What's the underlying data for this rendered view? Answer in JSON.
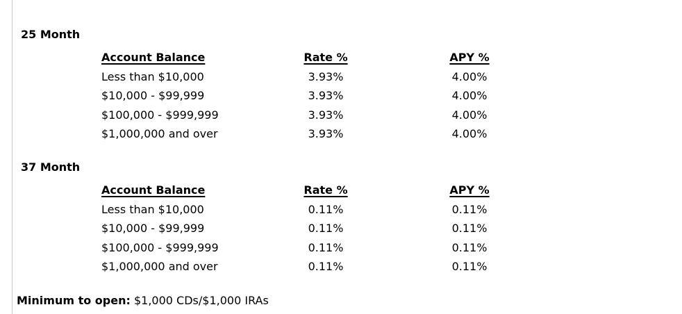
{
  "sections": [
    {
      "title": "25 Month",
      "headers": {
        "balance": "Account Balance",
        "rate": "Rate %",
        "apy": "APY %"
      },
      "rows": [
        {
          "balance": "Less than $10,000",
          "rate": "3.93%",
          "apy": "4.00%"
        },
        {
          "balance": "$10,000 - $99,999",
          "rate": "3.93%",
          "apy": "4.00%"
        },
        {
          "balance": "$100,000 - $999,999",
          "rate": "3.93%",
          "apy": "4.00%"
        },
        {
          "balance": "$1,000,000 and over",
          "rate": "3.93%",
          "apy": "4.00%"
        }
      ]
    },
    {
      "title": "37 Month",
      "headers": {
        "balance": "Account Balance",
        "rate": "Rate %",
        "apy": "APY %"
      },
      "rows": [
        {
          "balance": "Less than $10,000",
          "rate": "0.11%",
          "apy": "0.11%"
        },
        {
          "balance": "$10,000 - $99,999",
          "rate": "0.11%",
          "apy": "0.11%"
        },
        {
          "balance": "$100,000 - $999,999",
          "rate": "0.11%",
          "apy": "0.11%"
        },
        {
          "balance": "$1,000,000 and over",
          "rate": "0.11%",
          "apy": "0.11%"
        }
      ]
    }
  ],
  "footer": {
    "label": "Minimum to open:",
    "value": "$1,000 CDs/$1,000 IRAs"
  }
}
